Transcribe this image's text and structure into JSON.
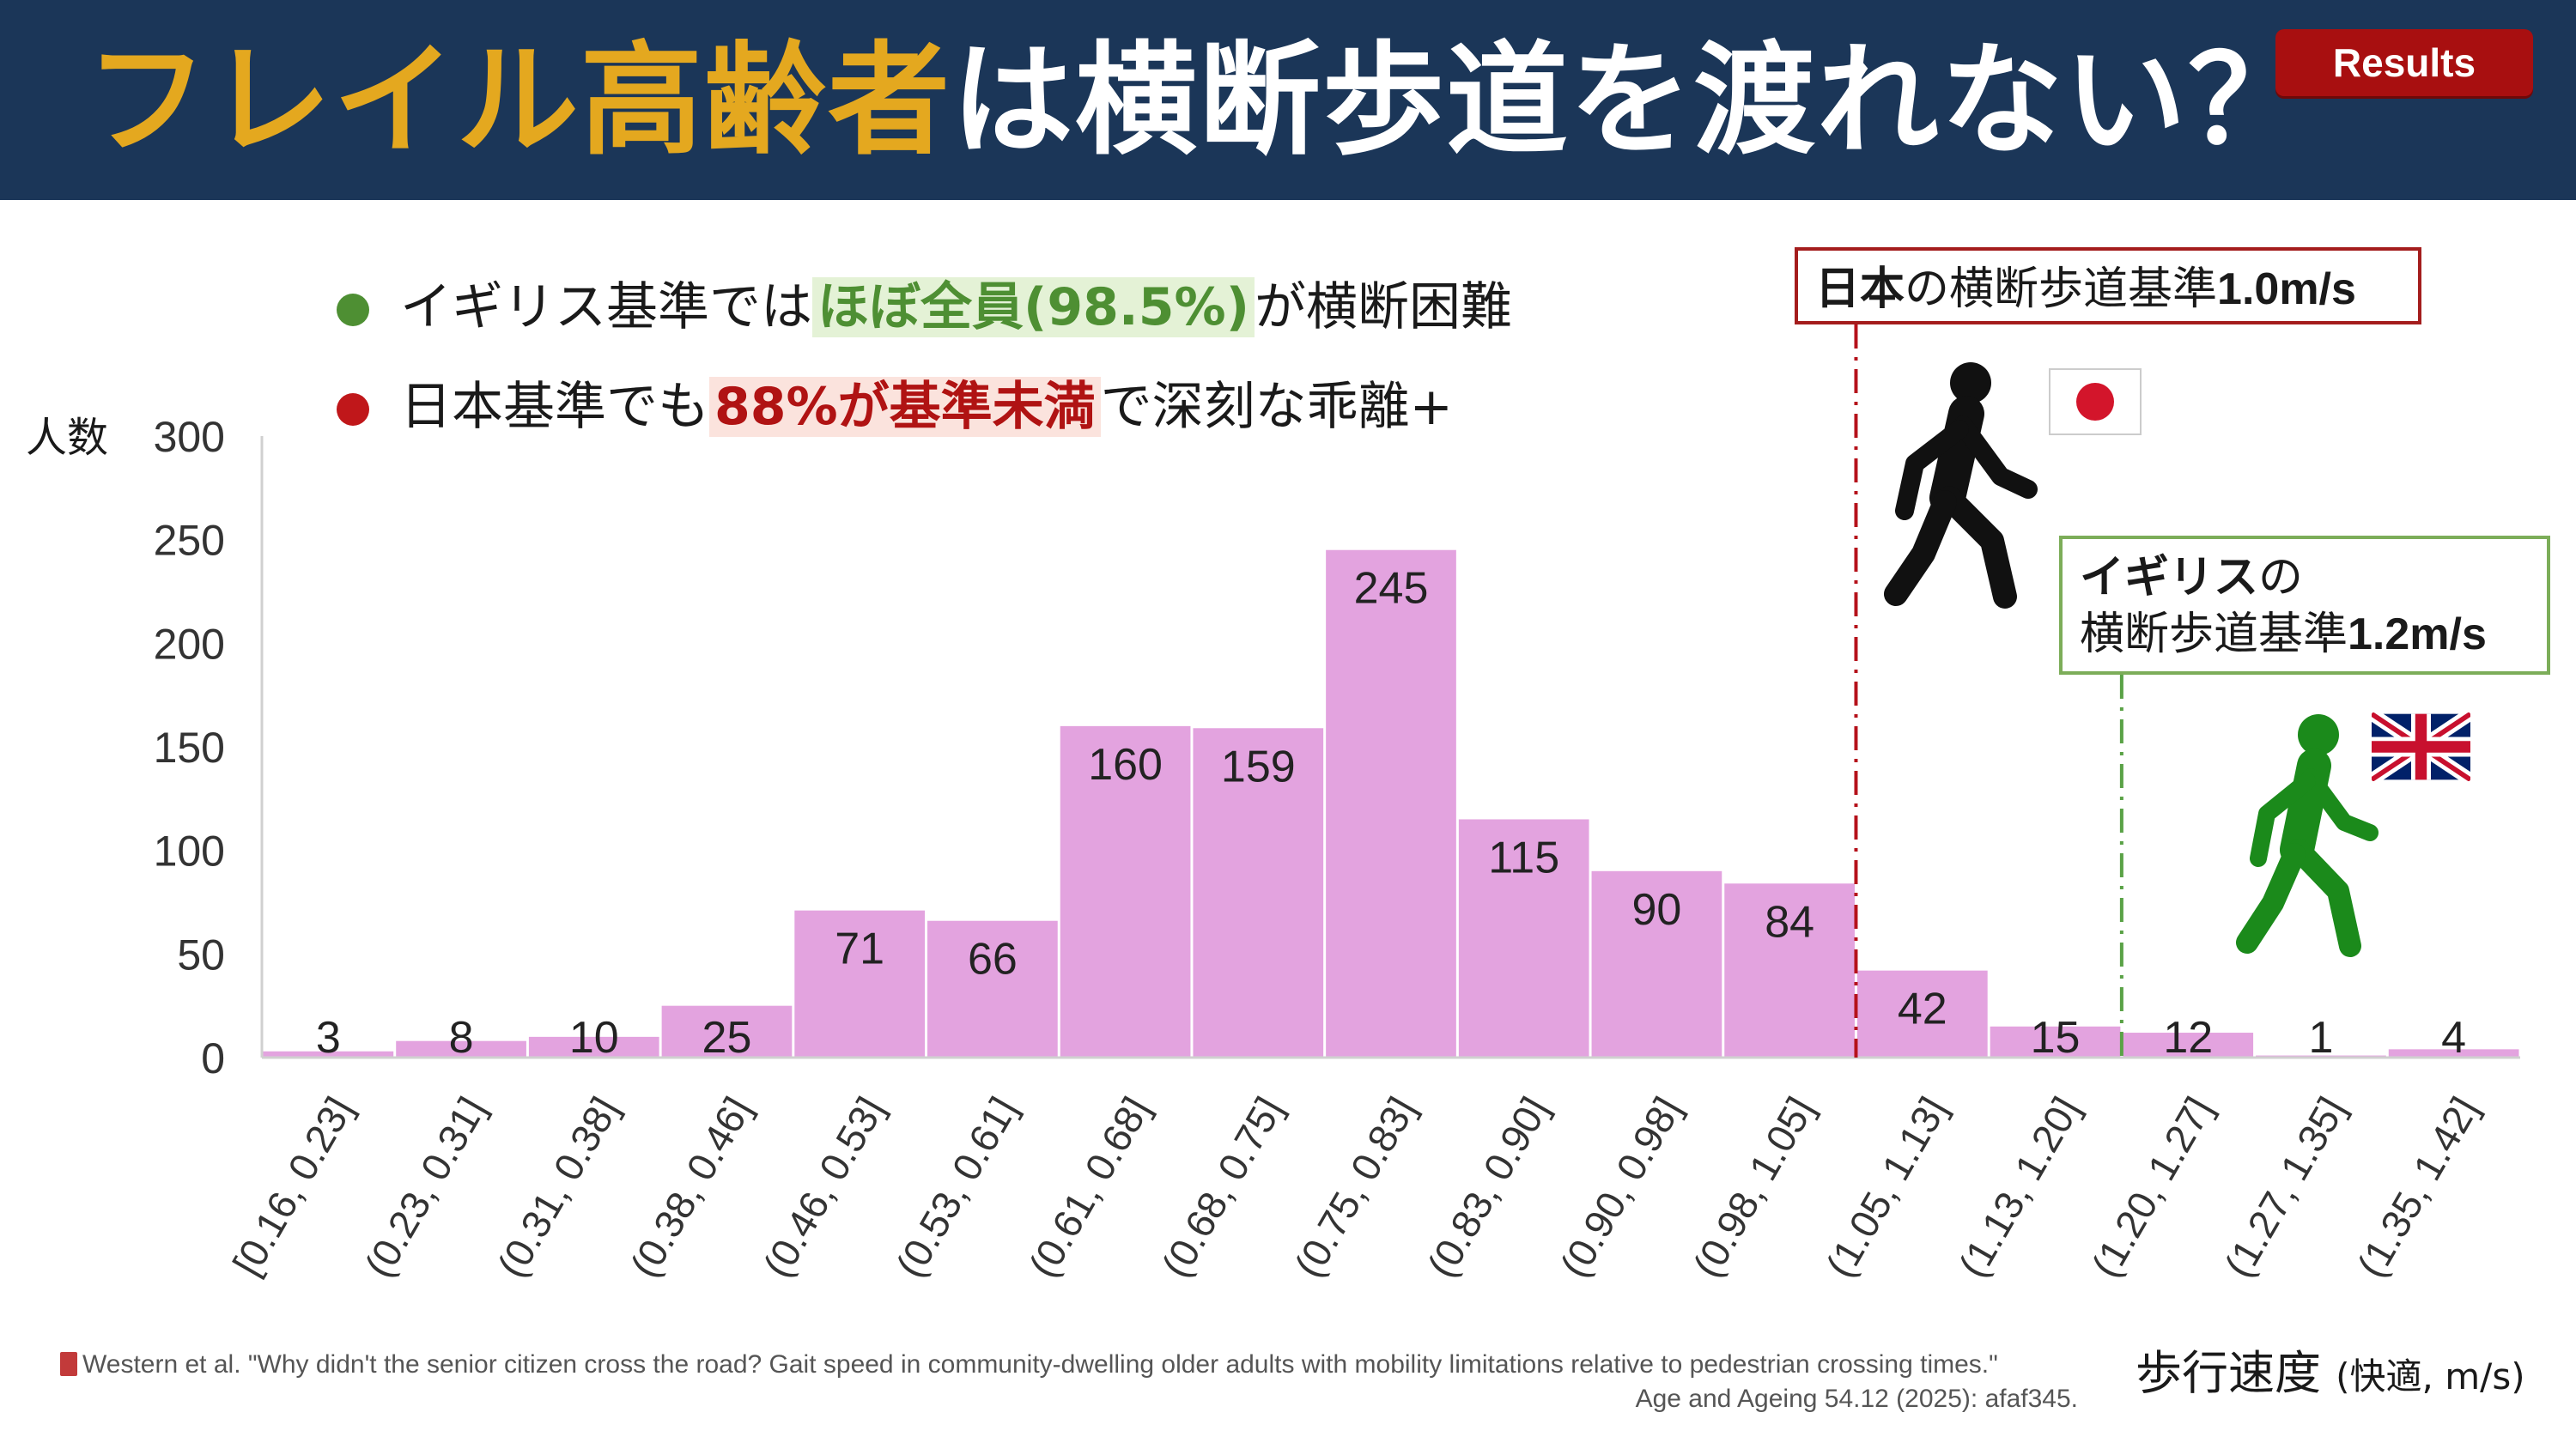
{
  "header": {
    "title_part1": "フレイル高齢者",
    "title_part2": "は横断歩道を渡れない？",
    "badge": "Results"
  },
  "bullets": [
    {
      "prefix": "イギリス基準では",
      "highlight": "ほぼ全員(98.5%)",
      "suffix": "が横断困難",
      "dot_color": "#4e8f33"
    },
    {
      "prefix": "日本基準でも",
      "highlight": "88%が基準未満",
      "suffix": "で深刻な乖離+",
      "dot_color": "#c0171a"
    }
  ],
  "annotations": {
    "japan_box": {
      "bold": "日本",
      "mid": "の横断歩道基準",
      "value": "1.0m/s"
    },
    "uk_box": {
      "bold": "イギリス",
      "mid": "の",
      "line2": "横断歩道基準",
      "value": "1.2m/s"
    },
    "japan_flag_icon": "japan-flag-icon",
    "uk_flag_icon": "uk-flag-icon",
    "walker_black_icon": "walking-person-icon",
    "walker_green_icon": "walking-person-icon"
  },
  "chart_data": {
    "type": "bar",
    "ylabel": "人数",
    "xlabel": "歩行速度",
    "xlabel_unit": "(快適, m/s)",
    "ylim": [
      0,
      300
    ],
    "yticks": [
      0,
      50,
      100,
      150,
      200,
      250,
      300
    ],
    "categories": [
      "[0.16, 0.23]",
      "(0.23, 0.31]",
      "(0.31, 0.38]",
      "(0.38, 0.46]",
      "(0.46, 0.53]",
      "(0.53, 0.61]",
      "(0.61, 0.68]",
      "(0.68, 0.75]",
      "(0.75, 0.83]",
      "(0.83, 0.90]",
      "(0.90, 0.98]",
      "(0.98, 1.05]",
      "(1.05, 1.13]",
      "(1.13, 1.20]",
      "(1.20, 1.27]",
      "(1.27, 1.35]",
      "(1.35, 1.42]"
    ],
    "values": [
      3,
      8,
      10,
      25,
      71,
      66,
      160,
      159,
      245,
      115,
      90,
      84,
      42,
      15,
      12,
      1,
      4
    ],
    "bar_color": "#e3a3df",
    "reference_lines": [
      {
        "x": 1.05,
        "color": "#b5121b"
      },
      {
        "x": 1.2,
        "color": "#5aa246"
      }
    ]
  },
  "citation": {
    "line1": "Western et al. \"Why didn't the senior citizen cross the road? Gait speed in community-dwelling older adults with mobility limitations relative to pedestrian crossing times.\"",
    "line2": "Age and Ageing 54.12 (2025): afaf345."
  }
}
